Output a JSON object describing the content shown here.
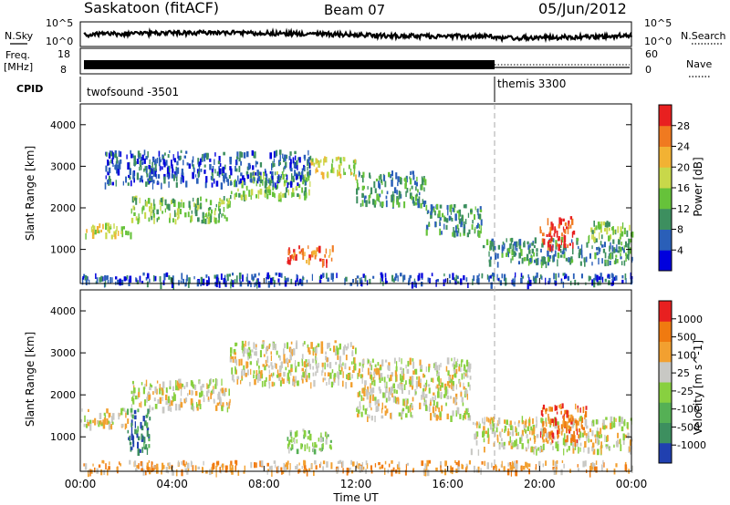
{
  "header": {
    "station": "Saskatoon (fitACF)",
    "beam": "Beam 07",
    "date": "05/Jun/2012"
  },
  "status_panels": {
    "nsky_label": "N.Sky",
    "nsky_ticks": [
      "10^5",
      "10^0"
    ],
    "nsearch_label": "N.Search",
    "nsearch_ticks": [
      "10^5",
      "10^0"
    ],
    "freq_label_1": "Freq.",
    "freq_label_2": "[MHz]",
    "freq_ticks": [
      "18",
      "8"
    ],
    "nave_label": "Nave",
    "nave_ticks": [
      "60",
      "0"
    ],
    "cpid_label": "CPID",
    "cpid_segments": [
      {
        "name": "twofsound -3501",
        "start_hour": 0,
        "end_hour": 18
      },
      {
        "name": "themis 3300",
        "start_hour": 18,
        "end_hour": 24
      }
    ]
  },
  "chart_data": [
    {
      "type": "heatmap",
      "title": "",
      "ylabel": "Slant Range [km]",
      "xlabel": "",
      "x_unit": "hour UT",
      "xlim": [
        0,
        24
      ],
      "ylim": [
        180,
        4500
      ],
      "yticks": [
        1000,
        2000,
        3000,
        4000
      ],
      "colorbar": {
        "label": "Power [dB]",
        "ticks": [
          "4",
          "8",
          "12",
          "16",
          "20",
          "24",
          "28"
        ],
        "colors": [
          "#0000dd",
          "#2a5fb8",
          "#3d8f5f",
          "#66c23a",
          "#c8d84a",
          "#f2b233",
          "#f07a20",
          "#e82020"
        ]
      },
      "scatter_regions": [
        {
          "x": [
            0,
            2.2
          ],
          "y": [
            1350,
            1650
          ],
          "level": 4
        },
        {
          "x": [
            2.2,
            6.5
          ],
          "y": [
            1700,
            2300
          ],
          "level": 3
        },
        {
          "x": [
            6.5,
            10
          ],
          "y": [
            2300,
            2900
          ],
          "level": 3
        },
        {
          "x": [
            10,
            12
          ],
          "y": [
            2800,
            3250
          ],
          "level": 4
        },
        {
          "x": [
            12,
            15
          ],
          "y": [
            2100,
            2900
          ],
          "level": 2
        },
        {
          "x": [
            15,
            17.5
          ],
          "y": [
            1400,
            2100
          ],
          "level": 2
        },
        {
          "x": [
            17.5,
            24
          ],
          "y": [
            700,
            1300
          ],
          "level": 2
        },
        {
          "x": [
            20,
            21.5
          ],
          "y": [
            1100,
            1800
          ],
          "level": 7
        },
        {
          "x": [
            0,
            24
          ],
          "y": [
            200,
            450
          ],
          "level": 1
        },
        {
          "x": [
            1,
            10
          ],
          "y": [
            2600,
            3400
          ],
          "level": 1
        },
        {
          "x": [
            22,
            24
          ],
          "y": [
            1300,
            1700
          ],
          "level": 3
        },
        {
          "x": [
            9,
            11
          ],
          "y": [
            700,
            1100
          ],
          "level": 6
        }
      ]
    },
    {
      "type": "heatmap",
      "title": "",
      "ylabel": "Slant Range [km]",
      "xlabel": "Time UT",
      "x_unit": "hour UT",
      "xlim": [
        0,
        24
      ],
      "ylim": [
        180,
        4500
      ],
      "yticks": [
        1000,
        2000,
        3000,
        4000
      ],
      "xticks": [
        "00:00",
        "04:00",
        "08:00",
        "12:00",
        "16:00",
        "20:00",
        "00:00"
      ],
      "colorbar": {
        "label": "Velocity [m s^-1]",
        "ticks": [
          "1000",
          "500",
          "100",
          "25",
          "-25",
          "-100",
          "-500",
          "-1000"
        ],
        "colors": [
          "#2040b0",
          "#3d8f5f",
          "#55b055",
          "#88d040",
          "#c8c8c4",
          "#f2a030",
          "#f07a10",
          "#e82020"
        ]
      },
      "scatter_regions": [
        {
          "x": [
            0,
            2.2
          ],
          "y": [
            1300,
            1700
          ],
          "level": 4
        },
        {
          "x": [
            2.2,
            6.5
          ],
          "y": [
            1700,
            2400
          ],
          "level": 4
        },
        {
          "x": [
            6.5,
            12
          ],
          "y": [
            2300,
            3300
          ],
          "level": 4
        },
        {
          "x": [
            12,
            17
          ],
          "y": [
            1500,
            2900
          ],
          "level": 4
        },
        {
          "x": [
            17,
            24
          ],
          "y": [
            700,
            1500
          ],
          "level": 4
        },
        {
          "x": [
            20,
            22
          ],
          "y": [
            900,
            1800
          ],
          "level": 6
        },
        {
          "x": [
            0,
            24
          ],
          "y": [
            200,
            450
          ],
          "level": 5
        },
        {
          "x": [
            2,
            3
          ],
          "y": [
            700,
            1700
          ],
          "level": 1
        },
        {
          "x": [
            9,
            11
          ],
          "y": [
            700,
            1200
          ],
          "level": 3
        }
      ]
    }
  ]
}
